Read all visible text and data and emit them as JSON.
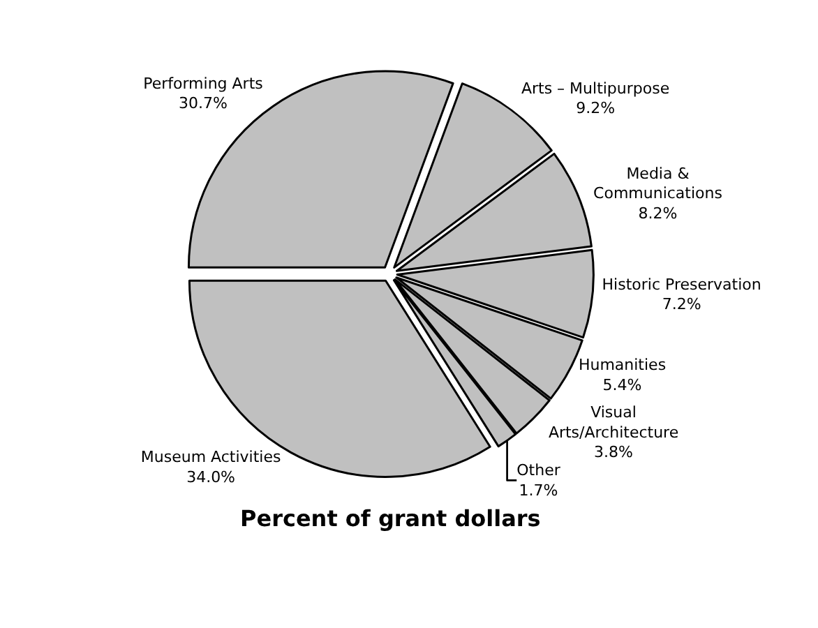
{
  "chart_data": {
    "type": "pie",
    "title": "Percent of grant dollars",
    "categories": [
      "Performing Arts",
      "Arts – Multipurpose",
      "Media & Communications",
      "Historic Preservation",
      "Humanities",
      "Visual Arts/Architecture",
      "Other",
      "Museum Activities"
    ],
    "values": [
      30.7,
      9.2,
      8.2,
      7.2,
      5.4,
      3.8,
      1.7,
      34.0
    ],
    "colors": [
      "#c0c0c0",
      "#c0c0c0",
      "#c0c0c0",
      "#c0c0c0",
      "#c0c0c0",
      "#c0c0c0",
      "#c0c0c0",
      "#c0c0c0"
    ],
    "value_labels": [
      "30.7%",
      "9.2%",
      "8.2%",
      "7.2%",
      "5.4%",
      "3.8%",
      "1.7%",
      "34.0%"
    ],
    "legend": false
  }
}
